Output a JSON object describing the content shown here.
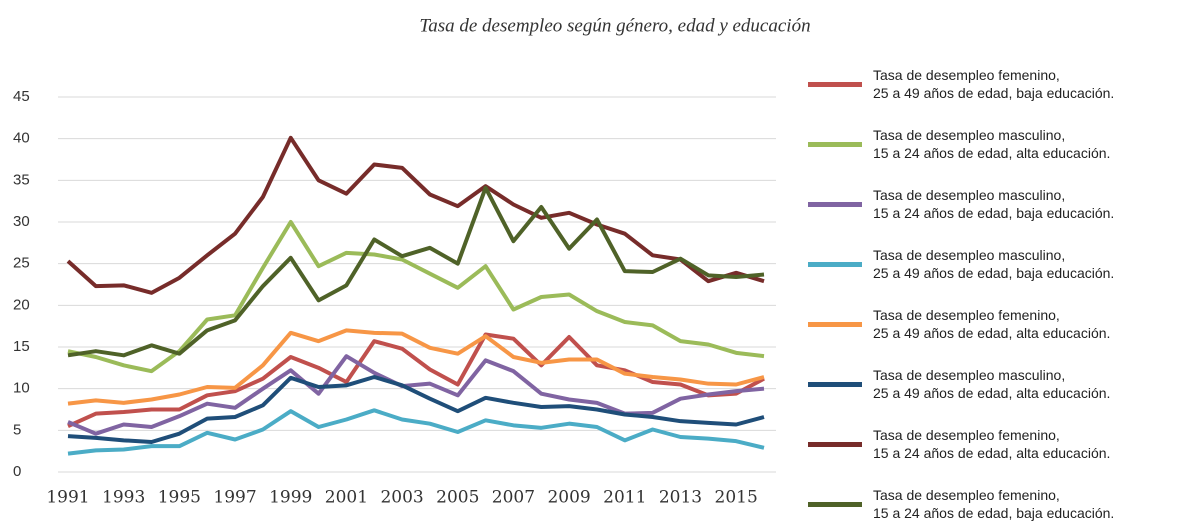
{
  "chart_data": {
    "type": "line",
    "title": "Tasa de desempleo según género, edad y educación",
    "categories": [
      "1991",
      null,
      "1993",
      null,
      "1995",
      null,
      "1997",
      null,
      "1999",
      null,
      "2001",
      null,
      "2003",
      null,
      "2005",
      null,
      "2007",
      null,
      "2009",
      null,
      "2011",
      null,
      "2013",
      null,
      "2015",
      null
    ],
    "ylim": [
      0,
      45
    ],
    "yticks": [
      0,
      5,
      10,
      15,
      20,
      25,
      30,
      35,
      40,
      45
    ],
    "grid": true,
    "series": [
      {
        "name": "Tasa de desempleo femenino,\n25 a 49 años de edad, baja educación.",
        "color": "#c0504d",
        "values": [
          5.5,
          7,
          7.2,
          7.5,
          7.5,
          9.2,
          9.7,
          11.2,
          13.8,
          12.5,
          10.8,
          15.7,
          14.8,
          12.3,
          10.5,
          16.5,
          16,
          12.8,
          16.2,
          12.8,
          12.2,
          10.8,
          10.5,
          9.2,
          9.4,
          11.2
        ]
      },
      {
        "name": "Tasa de desempleo masculino,\n15 a 24 años de edad, alta educación.",
        "color": "#9bbb59",
        "values": [
          14.5,
          13.8,
          12.8,
          12.1,
          14.5,
          18.3,
          18.8,
          24.5,
          30,
          24.7,
          26.3,
          26.1,
          25.5,
          23.8,
          22.1,
          24.7,
          19.5,
          21,
          21.3,
          19.3,
          18,
          17.6,
          15.7,
          15.3,
          14.3,
          13.9
        ]
      },
      {
        "name": "Tasa de desempleo masculino,\n15 a 24 años de edad, baja educación.",
        "color": "#8064a2",
        "values": [
          6,
          4.6,
          5.7,
          5.4,
          6.7,
          8.2,
          7.7,
          10,
          12.2,
          9.4,
          13.9,
          11.9,
          10.3,
          10.6,
          9.2,
          13.4,
          12.1,
          9.4,
          8.7,
          8.3,
          7,
          7.1,
          8.8,
          9.3,
          9.7,
          10
        ]
      },
      {
        "name": "Tasa de desempleo masculino,\n25 a 49 años de edad, baja educación.",
        "color": "#4bacc6",
        "values": [
          2.2,
          2.6,
          2.7,
          3.1,
          3.1,
          4.7,
          3.9,
          5.1,
          7.3,
          5.4,
          6.3,
          7.4,
          6.3,
          5.8,
          4.8,
          6.2,
          5.6,
          5.3,
          5.8,
          5.4,
          3.8,
          5.1,
          4.2,
          4,
          3.7,
          2.9
        ]
      },
      {
        "name": "Tasa de desempleo femenino,\n25 a 49 años de edad, alta educación.",
        "color": "#f79646",
        "values": [
          8.2,
          8.6,
          8.3,
          8.7,
          9.3,
          10.2,
          10.1,
          12.8,
          16.7,
          15.7,
          17,
          16.7,
          16.6,
          14.9,
          14.2,
          16.3,
          13.8,
          13.1,
          13.5,
          13.5,
          11.8,
          11.4,
          11.1,
          10.6,
          10.5,
          11.4
        ]
      },
      {
        "name": "Tasa de desempleo masculino,\n25 a 49 años de edad, alta educación.",
        "color": "#1f4e79",
        "values": [
          4.3,
          4.1,
          3.8,
          3.6,
          4.6,
          6.4,
          6.6,
          8,
          11.3,
          10.2,
          10.4,
          11.4,
          10.4,
          8.8,
          7.3,
          8.9,
          8.3,
          7.8,
          7.9,
          7.5,
          6.9,
          6.6,
          6.1,
          5.9,
          5.7,
          6.6
        ]
      },
      {
        "name": "Tasa de desempleo femenino,\n15 a 24 años de edad, alta educación.",
        "color": "#772c2a",
        "values": [
          25.3,
          22.3,
          22.4,
          21.5,
          23.3,
          26,
          28.6,
          33,
          40.1,
          35,
          33.4,
          36.9,
          36.5,
          33.3,
          31.9,
          34.3,
          32.1,
          30.5,
          31.1,
          29.7,
          28.6,
          26,
          25.5,
          22.9,
          23.9,
          22.9
        ]
      },
      {
        "name": "Tasa de desempleo femenino,\n15 a 24 años de edad, baja educación.",
        "color": "#4f6228",
        "values": [
          14,
          14.5,
          14,
          15.2,
          14.2,
          17,
          18.2,
          22.3,
          25.7,
          20.6,
          22.4,
          27.9,
          25.9,
          26.9,
          25,
          34.1,
          27.7,
          31.8,
          26.8,
          30.3,
          24.1,
          24,
          25.6,
          23.6,
          23.4,
          23.7
        ]
      }
    ]
  }
}
